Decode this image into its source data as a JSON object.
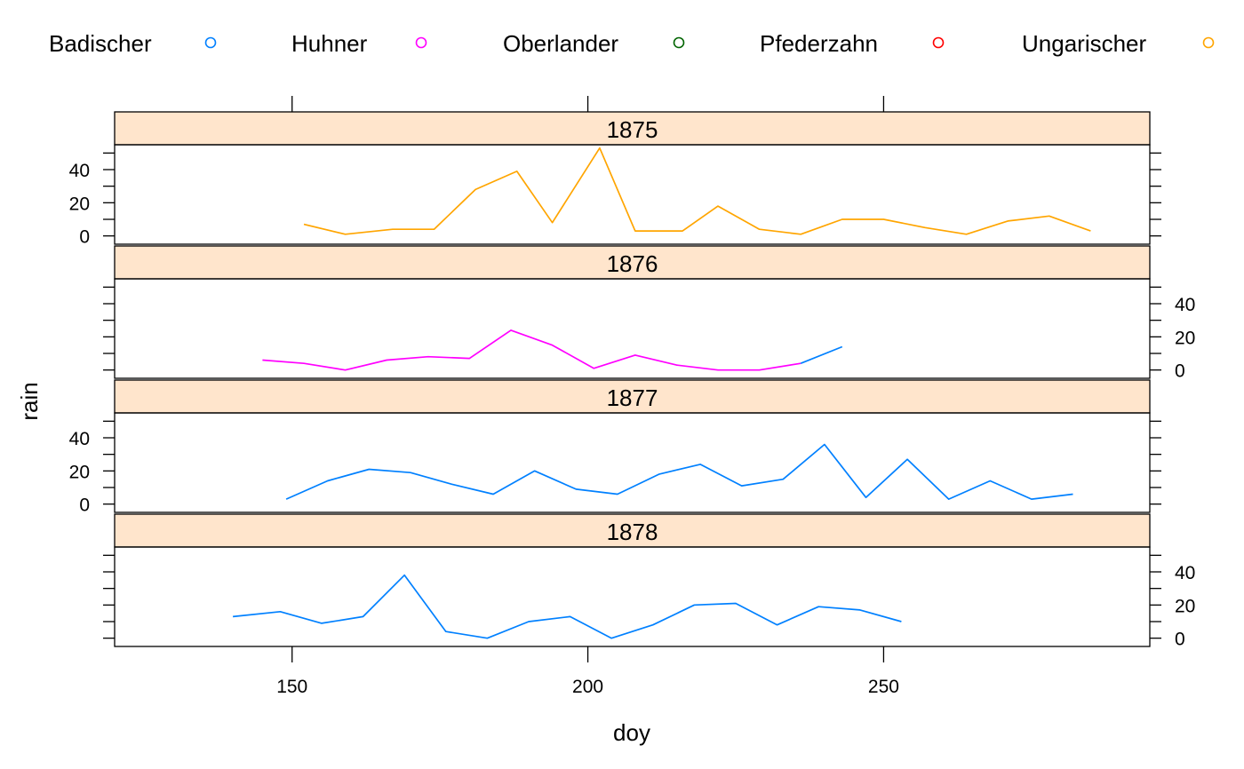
{
  "chart_data": {
    "type": "line",
    "xlabel": "doy",
    "ylabel": "rain",
    "xlim": [
      120,
      295
    ],
    "ylim": [
      -5,
      55
    ],
    "x_ticks": [
      150,
      200,
      250
    ],
    "y_ticks": [
      0,
      20,
      40
    ],
    "legend_position": "top",
    "legend": [
      {
        "name": "Badischer",
        "color": "#0080ff"
      },
      {
        "name": "Huhner",
        "color": "#ff00ff"
      },
      {
        "name": "Oberlander",
        "color": "#006400"
      },
      {
        "name": "Pfederzahn",
        "color": "#ff0000"
      },
      {
        "name": "Ungarischer",
        "color": "#ffa500"
      }
    ],
    "panels": [
      {
        "year": "1875",
        "series": [
          {
            "group": "Ungarischer",
            "color": "#ffa500",
            "x": [
              152,
              159,
              167,
              174,
              181,
              188,
              194,
              202,
              208,
              216,
              222,
              229,
              236,
              243,
              250,
              257,
              264,
              271,
              278,
              285
            ],
            "y": [
              7,
              1,
              4,
              4,
              28,
              39,
              8,
              53,
              3,
              3,
              18,
              4,
              1,
              10,
              10,
              5,
              1,
              9,
              12,
              3
            ]
          }
        ]
      },
      {
        "year": "1876",
        "series": [
          {
            "group": "Huhner",
            "color": "#ff00ff",
            "x": [
              145,
              152,
              159,
              166,
              173,
              180,
              187,
              194,
              201,
              208,
              215,
              222,
              229,
              236
            ],
            "y": [
              6,
              4,
              0,
              6,
              8,
              7,
              24,
              15,
              1,
              9,
              3,
              0,
              0,
              4
            ]
          },
          {
            "group": "Badischer",
            "color": "#0080ff",
            "x": [
              236,
              243
            ],
            "y": [
              4,
              14
            ]
          }
        ]
      },
      {
        "year": "1877",
        "series": [
          {
            "group": "Badischer",
            "color": "#0080ff",
            "x": [
              149,
              156,
              163,
              170,
              177,
              184,
              191,
              198,
              205,
              212,
              219,
              226,
              233,
              240,
              247,
              254,
              261,
              268,
              275,
              282
            ],
            "y": [
              3,
              14,
              21,
              19,
              12,
              6,
              20,
              9,
              6,
              18,
              24,
              11,
              15,
              36,
              4,
              27,
              3,
              14,
              3,
              6
            ]
          }
        ]
      },
      {
        "year": "1878",
        "series": [
          {
            "group": "Badischer",
            "color": "#0080ff",
            "x": [
              140,
              148,
              155,
              162,
              169,
              176,
              183,
              190,
              197,
              204,
              211,
              218,
              225,
              232,
              239,
              246,
              253
            ],
            "y": [
              13,
              16,
              9,
              13,
              38,
              4,
              0,
              10,
              13,
              0,
              8,
              20,
              21,
              8,
              19,
              17,
              10
            ]
          }
        ]
      }
    ]
  }
}
